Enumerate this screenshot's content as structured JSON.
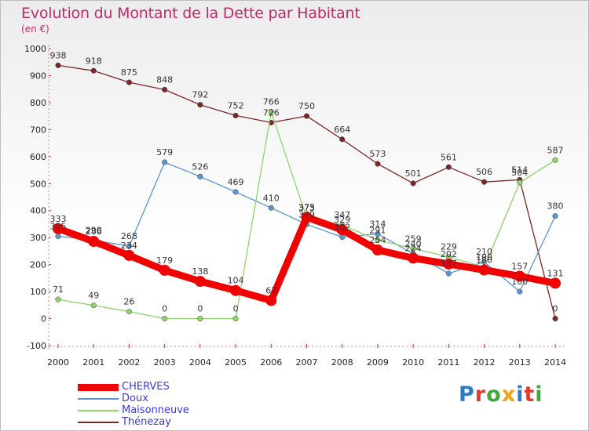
{
  "title": "Evolution du Montant de la Dette par Habitant",
  "unit_label": "(en €)",
  "logo": {
    "text": "Proxiti",
    "colors": [
      "#2e79c5",
      "#e33a2e",
      "#3ea83a",
      "#f2a31a",
      "#2e79c5",
      "#e33a2e",
      "#3ea83a"
    ]
  },
  "chart_data": {
    "type": "line",
    "title": "Evolution du Montant de la Dette par Habitant",
    "ylabel": "(en €)",
    "xlabel": "",
    "x": [
      "2000",
      "2001",
      "2002",
      "2003",
      "2004",
      "2005",
      "2006",
      "2007",
      "2008",
      "2009",
      "2010",
      "2011",
      "2012",
      "2013",
      "2014"
    ],
    "ylim": [
      -100,
      1000
    ],
    "yticks": [
      "-100",
      "0",
      "100",
      "200",
      "300",
      "400",
      "500",
      "600",
      "700",
      "800",
      "900",
      "1000"
    ],
    "grid": false,
    "legend_position": "bottom-left",
    "series": [
      {
        "name": "Thénezay",
        "color": "#7a2727",
        "values": [
          938,
          918,
          875,
          848,
          792,
          752,
          726,
          750,
          664,
          573,
          501,
          561,
          506,
          514,
          0
        ],
        "labels": [
          "938",
          "918",
          "875",
          "848",
          "792",
          "752",
          "726",
          "750",
          "664",
          "573",
          "501",
          "561",
          "506",
          "514",
          "0"
        ]
      },
      {
        "name": "Doux",
        "color": "#5b95cf",
        "values": [
          305,
          290,
          268,
          579,
          526,
          469,
          410,
          349,
          302,
          314,
          240,
          167,
          210,
          100,
          380
        ],
        "labels": [
          "305",
          "290",
          "268",
          "579",
          "526",
          "469",
          "410",
          "349",
          "302",
          "314",
          "240",
          "167",
          "210",
          "100",
          "380"
        ]
      },
      {
        "name": "Maisonneuve",
        "color": "#8ed46a",
        "values": [
          71,
          49,
          26,
          0,
          0,
          0,
          766,
          373,
          347,
          291,
          259,
          229,
          190,
          504,
          587
        ],
        "labels": [
          "71",
          "49",
          "26",
          "0",
          "0",
          "0",
          "766",
          "373",
          "347",
          "291",
          "259",
          "229",
          "190",
          "504",
          "587"
        ]
      },
      {
        "name": "CHERVES",
        "color": "#f00000",
        "values": [
          333,
          286,
          234,
          179,
          138,
          104,
          67,
          375,
          329,
          254,
          224,
          202,
          180,
          157,
          131
        ],
        "labels": [
          "333",
          "286",
          "234",
          "179",
          "138",
          "104",
          "67",
          "375",
          "329",
          "254",
          "224",
          "202",
          "180",
          "157",
          "131"
        ]
      }
    ],
    "legend": [
      {
        "name": "CHERVES",
        "color": "#f00000"
      },
      {
        "name": "Doux",
        "color": "#5b95cf"
      },
      {
        "name": "Maisonneuve",
        "color": "#8ed46a"
      },
      {
        "name": "Thénezay",
        "color": "#7a2727"
      }
    ]
  }
}
